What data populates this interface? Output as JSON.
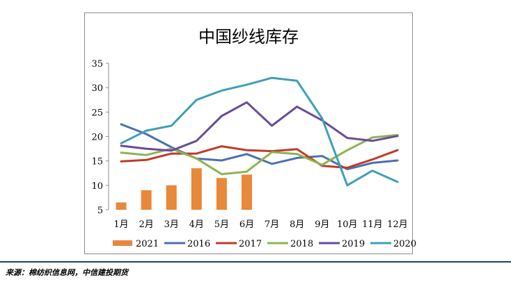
{
  "chart_data": {
    "type": "bar+line",
    "title": "中国纱线库存",
    "categories": [
      "1月",
      "2月",
      "3月",
      "4月",
      "5月",
      "6月",
      "7月",
      "8月",
      "9月",
      "10月",
      "11月",
      "12月"
    ],
    "ylim": [
      5,
      35
    ],
    "yticks": [
      5,
      10,
      15,
      20,
      25,
      30,
      35
    ],
    "grid": false,
    "legend_position": "bottom",
    "bars": {
      "name": "2021",
      "color": "#e7883a",
      "values": [
        6.5,
        9.0,
        10.0,
        13.5,
        11.5,
        12.2
      ]
    },
    "series": [
      {
        "name": "2016",
        "color": "#4a70b0",
        "values": [
          22.5,
          20.5,
          17.8,
          15.5,
          15.1,
          16.4,
          14.4,
          15.6,
          16.0,
          13.3,
          14.6,
          15.1
        ]
      },
      {
        "name": "2017",
        "color": "#c0392b",
        "values": [
          14.9,
          15.2,
          16.5,
          16.5,
          18.0,
          17.2,
          17.0,
          17.4,
          14.0,
          13.6,
          15.3,
          17.2
        ]
      },
      {
        "name": "2018",
        "color": "#8db450",
        "values": [
          16.7,
          16.2,
          17.5,
          15.5,
          12.3,
          12.8,
          16.8,
          16.4,
          14.2,
          17.2,
          19.8,
          20.3
        ]
      },
      {
        "name": "2019",
        "color": "#6a4a98",
        "values": [
          18.1,
          17.5,
          17.1,
          19.1,
          24.2,
          27.0,
          22.2,
          26.1,
          23.3,
          19.7,
          19.1,
          20.1
        ]
      },
      {
        "name": "2020",
        "color": "#3e9fb5",
        "values": [
          18.6,
          21.2,
          22.2,
          27.5,
          29.4,
          30.6,
          32.0,
          31.4,
          23.7,
          10.0,
          13.0,
          10.7
        ]
      }
    ]
  },
  "source": "来源：棉纺织信息网，中信建投期货"
}
